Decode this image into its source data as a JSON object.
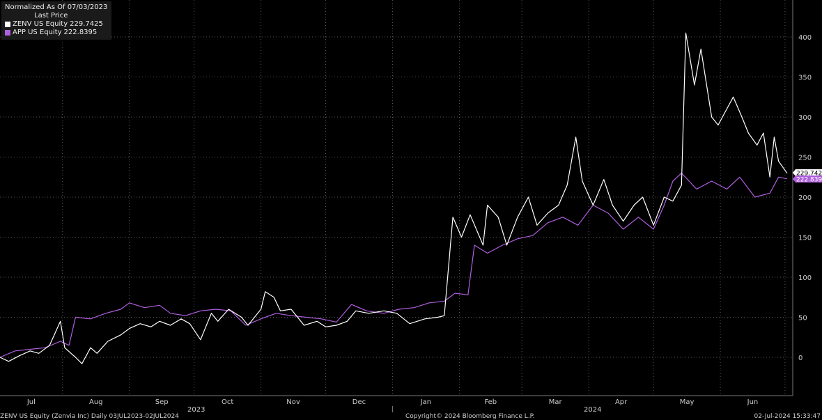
{
  "legend": {
    "header": "Normalized As Of 07/03/2023",
    "subheader": "Last Price",
    "items": [
      {
        "name": "ZENV US Equity",
        "value": "229.7425",
        "color": "#ffffff"
      },
      {
        "name": "APP US Equity",
        "value": "222.8395",
        "color": "#b05fe0"
      }
    ]
  },
  "footer": {
    "left": "ZENV US Equity (Zenvia Inc) Daily 03JUL2023-02JUL2024",
    "center": "Copyright© 2024 Bloomberg Finance L.P.",
    "right": "02-Jul-2024 15:33:47"
  },
  "chart_data": {
    "type": "line",
    "x_start": "2023-07-03",
    "x_end": "2024-07-02",
    "ylim": [
      -50,
      425
    ],
    "yticks": [
      0,
      50,
      100,
      150,
      200,
      250,
      300,
      350,
      400
    ],
    "grid": true,
    "legend_position": "top-left",
    "xaxis_months": [
      "Jul",
      "Aug",
      "Sep",
      "Oct",
      "Nov",
      "Dec",
      "Jan",
      "Feb",
      "Mar",
      "Apr",
      "May",
      "Jun"
    ],
    "xaxis_years": [
      "2023",
      "2024"
    ],
    "last_value_labels": [
      "229.7425",
      "222.8395"
    ],
    "series": [
      {
        "name": "ZENV US Equity",
        "color": "#ffffff",
        "points": [
          [
            "2023-07-03",
            0
          ],
          [
            "2023-07-07",
            -5
          ],
          [
            "2023-07-12",
            2
          ],
          [
            "2023-07-17",
            8
          ],
          [
            "2023-07-21",
            5
          ],
          [
            "2023-07-26",
            15
          ],
          [
            "2023-07-31",
            45
          ],
          [
            "2023-08-02",
            12
          ],
          [
            "2023-08-07",
            0
          ],
          [
            "2023-08-10",
            -8
          ],
          [
            "2023-08-14",
            12
          ],
          [
            "2023-08-17",
            5
          ],
          [
            "2023-08-22",
            20
          ],
          [
            "2023-08-28",
            28
          ],
          [
            "2023-09-01",
            36
          ],
          [
            "2023-09-06",
            42
          ],
          [
            "2023-09-11",
            38
          ],
          [
            "2023-09-15",
            45
          ],
          [
            "2023-09-20",
            40
          ],
          [
            "2023-09-25",
            48
          ],
          [
            "2023-09-29",
            42
          ],
          [
            "2023-10-04",
            22
          ],
          [
            "2023-10-09",
            55
          ],
          [
            "2023-10-12",
            45
          ],
          [
            "2023-10-17",
            60
          ],
          [
            "2023-10-23",
            50
          ],
          [
            "2023-10-26",
            40
          ],
          [
            "2023-11-01",
            60
          ],
          [
            "2023-11-03",
            82
          ],
          [
            "2023-11-07",
            75
          ],
          [
            "2023-11-10",
            58
          ],
          [
            "2023-11-15",
            60
          ],
          [
            "2023-11-21",
            40
          ],
          [
            "2023-11-27",
            45
          ],
          [
            "2023-12-01",
            38
          ],
          [
            "2023-12-06",
            40
          ],
          [
            "2023-12-11",
            45
          ],
          [
            "2023-12-15",
            58
          ],
          [
            "2023-12-21",
            55
          ],
          [
            "2023-12-28",
            58
          ],
          [
            "2024-01-03",
            55
          ],
          [
            "2024-01-09",
            42
          ],
          [
            "2024-01-16",
            48
          ],
          [
            "2024-01-22",
            50
          ],
          [
            "2024-01-25",
            52
          ],
          [
            "2024-01-29",
            175
          ],
          [
            "2024-02-02",
            150
          ],
          [
            "2024-02-06",
            178
          ],
          [
            "2024-02-12",
            140
          ],
          [
            "2024-02-14",
            190
          ],
          [
            "2024-02-19",
            175
          ],
          [
            "2024-02-23",
            140
          ],
          [
            "2024-02-28",
            175
          ],
          [
            "2024-03-04",
            200
          ],
          [
            "2024-03-08",
            165
          ],
          [
            "2024-03-13",
            180
          ],
          [
            "2024-03-18",
            190
          ],
          [
            "2024-03-22",
            215
          ],
          [
            "2024-03-26",
            275
          ],
          [
            "2024-03-29",
            220
          ],
          [
            "2024-04-03",
            190
          ],
          [
            "2024-04-08",
            222
          ],
          [
            "2024-04-12",
            190
          ],
          [
            "2024-04-17",
            170
          ],
          [
            "2024-04-22",
            190
          ],
          [
            "2024-04-26",
            200
          ],
          [
            "2024-05-01",
            165
          ],
          [
            "2024-05-06",
            200
          ],
          [
            "2024-05-10",
            195
          ],
          [
            "2024-05-14",
            215
          ],
          [
            "2024-05-16",
            405
          ],
          [
            "2024-05-20",
            340
          ],
          [
            "2024-05-23",
            385
          ],
          [
            "2024-05-28",
            300
          ],
          [
            "2024-05-31",
            290
          ],
          [
            "2024-06-04",
            310
          ],
          [
            "2024-06-07",
            325
          ],
          [
            "2024-06-11",
            300
          ],
          [
            "2024-06-14",
            280
          ],
          [
            "2024-06-18",
            265
          ],
          [
            "2024-06-21",
            280
          ],
          [
            "2024-06-24",
            225
          ],
          [
            "2024-06-26",
            275
          ],
          [
            "2024-06-28",
            245
          ],
          [
            "2024-07-02",
            229.7425
          ]
        ]
      },
      {
        "name": "APP US Equity",
        "color": "#b05fe0",
        "points": [
          [
            "2023-07-03",
            0
          ],
          [
            "2023-07-10",
            8
          ],
          [
            "2023-07-17",
            10
          ],
          [
            "2023-07-24",
            12
          ],
          [
            "2023-07-31",
            20
          ],
          [
            "2023-08-04",
            15
          ],
          [
            "2023-08-07",
            50
          ],
          [
            "2023-08-14",
            48
          ],
          [
            "2023-08-21",
            55
          ],
          [
            "2023-08-28",
            60
          ],
          [
            "2023-09-01",
            68
          ],
          [
            "2023-09-08",
            62
          ],
          [
            "2023-09-15",
            65
          ],
          [
            "2023-09-20",
            55
          ],
          [
            "2023-09-27",
            52
          ],
          [
            "2023-10-04",
            58
          ],
          [
            "2023-10-11",
            60
          ],
          [
            "2023-10-18",
            58
          ],
          [
            "2023-10-25",
            40
          ],
          [
            "2023-11-01",
            48
          ],
          [
            "2023-11-08",
            55
          ],
          [
            "2023-11-15",
            52
          ],
          [
            "2023-11-22",
            50
          ],
          [
            "2023-11-29",
            48
          ],
          [
            "2023-12-06",
            44
          ],
          [
            "2023-12-13",
            66
          ],
          [
            "2023-12-20",
            58
          ],
          [
            "2023-12-28",
            55
          ],
          [
            "2024-01-04",
            60
          ],
          [
            "2024-01-11",
            62
          ],
          [
            "2024-01-18",
            68
          ],
          [
            "2024-01-25",
            70
          ],
          [
            "2024-01-30",
            80
          ],
          [
            "2024-02-05",
            78
          ],
          [
            "2024-02-08",
            140
          ],
          [
            "2024-02-14",
            130
          ],
          [
            "2024-02-21",
            140
          ],
          [
            "2024-02-28",
            148
          ],
          [
            "2024-03-06",
            152
          ],
          [
            "2024-03-13",
            168
          ],
          [
            "2024-03-20",
            175
          ],
          [
            "2024-03-27",
            165
          ],
          [
            "2024-04-03",
            190
          ],
          [
            "2024-04-10",
            180
          ],
          [
            "2024-04-17",
            160
          ],
          [
            "2024-04-24",
            175
          ],
          [
            "2024-05-01",
            160
          ],
          [
            "2024-05-06",
            190
          ],
          [
            "2024-05-10",
            220
          ],
          [
            "2024-05-14",
            230
          ],
          [
            "2024-05-21",
            210
          ],
          [
            "2024-05-28",
            220
          ],
          [
            "2024-06-04",
            210
          ],
          [
            "2024-06-10",
            225
          ],
          [
            "2024-06-17",
            200
          ],
          [
            "2024-06-24",
            205
          ],
          [
            "2024-06-28",
            225
          ],
          [
            "2024-07-02",
            222.8395
          ]
        ]
      }
    ]
  }
}
